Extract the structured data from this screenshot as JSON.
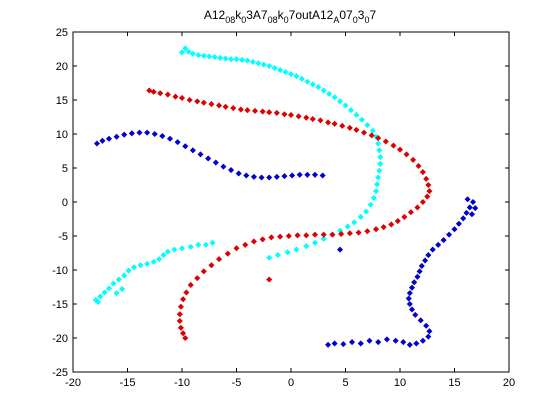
{
  "chart_data": {
    "type": "scatter",
    "title": {
      "parts": [
        {
          "t": "A12"
        },
        {
          "t": "08",
          "sub": true
        },
        {
          "t": "k"
        },
        {
          "t": "0",
          "sub": true
        },
        {
          "t": "3A7"
        },
        {
          "t": "08",
          "sub": true
        },
        {
          "t": "k"
        },
        {
          "t": "0",
          "sub": true
        },
        {
          "t": "7outA12"
        },
        {
          "t": "A",
          "sub": true
        },
        {
          "t": "07"
        },
        {
          "t": "0",
          "sub": true
        },
        {
          "t": "3"
        },
        {
          "t": "0",
          "sub": true
        },
        {
          "t": "7"
        }
      ]
    },
    "xlabel": "",
    "ylabel": "",
    "xlim": [
      -20,
      20
    ],
    "ylim": [
      -25,
      25
    ],
    "xticks": [
      "-20",
      "-15",
      "-10",
      "-5",
      "0",
      "5",
      "10",
      "15",
      "20"
    ],
    "yticks": [
      "-25",
      "-20",
      "-15",
      "-10",
      "-5",
      "0",
      "5",
      "10",
      "15",
      "20",
      "25"
    ],
    "grid": false,
    "marker": "diamond",
    "series": [
      {
        "color": "#00ffff",
        "points": [
          [
            -10.0,
            22.0
          ],
          [
            -9.7,
            22.6
          ],
          [
            -9.4,
            22.1
          ],
          [
            -9.0,
            21.8
          ],
          [
            -8.5,
            21.6
          ],
          [
            -8.0,
            21.5
          ],
          [
            -7.5,
            21.4
          ],
          [
            -7.0,
            21.3
          ],
          [
            -6.5,
            21.2
          ],
          [
            -6.0,
            21.1
          ],
          [
            -5.5,
            21.0
          ],
          [
            -5.0,
            21.0
          ],
          [
            -4.5,
            20.9
          ],
          [
            -4.0,
            20.8
          ],
          [
            -3.5,
            20.6
          ],
          [
            -3.0,
            20.4
          ],
          [
            -2.5,
            20.2
          ],
          [
            -2.0,
            20.0
          ],
          [
            -1.5,
            19.7
          ],
          [
            -1.0,
            19.4
          ],
          [
            -0.5,
            19.1
          ],
          [
            0.0,
            18.8
          ],
          [
            0.5,
            18.5
          ],
          [
            1.0,
            18.1
          ],
          [
            1.5,
            17.7
          ],
          [
            2.0,
            17.3
          ],
          [
            2.5,
            16.9
          ],
          [
            3.0,
            16.4
          ],
          [
            3.5,
            15.9
          ],
          [
            4.0,
            15.4
          ],
          [
            4.5,
            14.8
          ],
          [
            5.0,
            14.2
          ],
          [
            5.5,
            13.5
          ],
          [
            6.0,
            12.8
          ],
          [
            6.5,
            12.1
          ],
          [
            7.0,
            11.3
          ],
          [
            7.5,
            10.5
          ],
          [
            7.8,
            9.6
          ],
          [
            8.0,
            8.6
          ],
          [
            8.1,
            7.6
          ],
          [
            8.2,
            6.6
          ],
          [
            8.2,
            5.6
          ],
          [
            8.1,
            4.6
          ],
          [
            8.0,
            3.6
          ],
          [
            7.9,
            2.6
          ],
          [
            7.8,
            1.6
          ],
          [
            7.6,
            0.6
          ],
          [
            7.3,
            -0.4
          ],
          [
            6.9,
            -1.4
          ],
          [
            6.4,
            -2.2
          ],
          [
            5.8,
            -3.0
          ],
          [
            5.2,
            -3.6
          ],
          [
            4.5,
            -4.2
          ],
          [
            3.8,
            -4.8
          ],
          [
            3.0,
            -5.4
          ],
          [
            2.2,
            -6.0
          ],
          [
            1.4,
            -6.5
          ],
          [
            0.5,
            -7.0
          ],
          [
            -0.3,
            -7.4
          ],
          [
            -1.2,
            -7.8
          ],
          [
            -2.0,
            -8.2
          ],
          [
            -7.2,
            -6.0
          ],
          [
            -7.8,
            -6.3
          ],
          [
            -8.5,
            -6.3
          ],
          [
            -9.2,
            -6.6
          ],
          [
            -10.0,
            -6.8
          ],
          [
            -10.7,
            -7.0
          ],
          [
            -11.3,
            -7.3
          ],
          [
            -11.7,
            -7.8
          ],
          [
            -12.1,
            -8.4
          ],
          [
            -12.6,
            -8.8
          ],
          [
            -13.2,
            -9.1
          ],
          [
            -13.8,
            -9.3
          ],
          [
            -14.4,
            -9.6
          ],
          [
            -14.9,
            -10.1
          ],
          [
            -15.3,
            -10.8
          ],
          [
            -15.8,
            -11.4
          ],
          [
            -16.3,
            -12.0
          ],
          [
            -16.7,
            -12.7
          ],
          [
            -17.1,
            -13.3
          ],
          [
            -17.5,
            -13.9
          ],
          [
            -17.9,
            -14.4
          ],
          [
            -17.7,
            -14.7
          ],
          [
            -16.0,
            -13.4
          ],
          [
            -15.5,
            -12.8
          ]
        ]
      },
      {
        "color": "#dd0000",
        "points": [
          [
            -13.0,
            16.4
          ],
          [
            -12.6,
            16.2
          ],
          [
            -12.0,
            16.0
          ],
          [
            -11.3,
            15.8
          ],
          [
            -10.6,
            15.5
          ],
          [
            -10.0,
            15.3
          ],
          [
            -9.3,
            15.0
          ],
          [
            -8.6,
            14.8
          ],
          [
            -8.0,
            14.6
          ],
          [
            -7.3,
            14.4
          ],
          [
            -6.6,
            14.2
          ],
          [
            -6.0,
            14.0
          ],
          [
            -5.3,
            13.8
          ],
          [
            -4.6,
            13.6
          ],
          [
            -4.0,
            13.5
          ],
          [
            -3.3,
            13.4
          ],
          [
            -2.6,
            13.3
          ],
          [
            -2.0,
            13.2
          ],
          [
            -1.3,
            13.1
          ],
          [
            -0.6,
            12.9
          ],
          [
            0.0,
            12.8
          ],
          [
            0.7,
            12.6
          ],
          [
            1.4,
            12.4
          ],
          [
            2.0,
            12.2
          ],
          [
            2.7,
            12.0
          ],
          [
            3.4,
            11.7
          ],
          [
            4.0,
            11.5
          ],
          [
            4.7,
            11.2
          ],
          [
            5.4,
            10.9
          ],
          [
            6.0,
            10.6
          ],
          [
            6.7,
            10.2
          ],
          [
            7.4,
            9.8
          ],
          [
            8.0,
            9.4
          ],
          [
            8.7,
            8.9
          ],
          [
            9.4,
            8.3
          ],
          [
            10.0,
            7.7
          ],
          [
            10.6,
            7.0
          ],
          [
            11.2,
            6.2
          ],
          [
            11.7,
            5.3
          ],
          [
            12.1,
            4.4
          ],
          [
            12.4,
            3.4
          ],
          [
            12.6,
            2.5
          ],
          [
            12.7,
            1.6
          ],
          [
            12.5,
            0.8
          ],
          [
            12.1,
            0.0
          ],
          [
            11.6,
            -0.8
          ],
          [
            11.0,
            -1.5
          ],
          [
            10.4,
            -2.2
          ],
          [
            9.8,
            -2.8
          ],
          [
            9.2,
            -3.3
          ],
          [
            8.5,
            -3.7
          ],
          [
            7.8,
            -4.0
          ],
          [
            7.0,
            -4.3
          ],
          [
            6.2,
            -4.5
          ],
          [
            5.4,
            -4.6
          ],
          [
            4.6,
            -4.7
          ],
          [
            3.8,
            -4.8
          ],
          [
            3.0,
            -4.8
          ],
          [
            2.2,
            -4.8
          ],
          [
            1.4,
            -4.9
          ],
          [
            0.6,
            -4.9
          ],
          [
            -0.2,
            -5.0
          ],
          [
            -1.0,
            -5.1
          ],
          [
            -1.8,
            -5.2
          ],
          [
            -2.6,
            -5.5
          ],
          [
            -3.4,
            -5.8
          ],
          [
            -4.2,
            -6.3
          ],
          [
            -5.0,
            -6.8
          ],
          [
            -5.8,
            -7.6
          ],
          [
            -6.6,
            -8.4
          ],
          [
            -7.3,
            -9.3
          ],
          [
            -8.0,
            -10.2
          ],
          [
            -8.6,
            -11.2
          ],
          [
            -9.2,
            -12.2
          ],
          [
            -9.6,
            -13.3
          ],
          [
            -9.9,
            -14.3
          ],
          [
            -10.1,
            -15.4
          ],
          [
            -10.2,
            -16.5
          ],
          [
            -10.2,
            -17.5
          ],
          [
            -10.1,
            -18.5
          ],
          [
            -9.9,
            -19.3
          ],
          [
            -9.7,
            -20.0
          ],
          [
            -2.0,
            -11.4
          ]
        ]
      },
      {
        "color": "#0000cc",
        "points": [
          [
            -17.8,
            8.6
          ],
          [
            -17.3,
            9.0
          ],
          [
            -16.7,
            9.3
          ],
          [
            -16.0,
            9.6
          ],
          [
            -15.3,
            9.9
          ],
          [
            -14.6,
            10.1
          ],
          [
            -13.9,
            10.2
          ],
          [
            -13.2,
            10.2
          ],
          [
            -12.5,
            10.0
          ],
          [
            -11.8,
            9.7
          ],
          [
            -11.1,
            9.3
          ],
          [
            -10.4,
            8.8
          ],
          [
            -9.7,
            8.2
          ],
          [
            -9.0,
            7.6
          ],
          [
            -8.3,
            7.0
          ],
          [
            -7.6,
            6.4
          ],
          [
            -6.9,
            5.8
          ],
          [
            -6.2,
            5.2
          ],
          [
            -5.5,
            4.7
          ],
          [
            -4.8,
            4.2
          ],
          [
            -4.1,
            3.9
          ],
          [
            -3.4,
            3.7
          ],
          [
            -2.7,
            3.6
          ],
          [
            -2.0,
            3.6
          ],
          [
            -1.3,
            3.7
          ],
          [
            -0.6,
            3.8
          ],
          [
            0.1,
            3.9
          ],
          [
            0.8,
            4.0
          ],
          [
            1.5,
            4.0
          ],
          [
            2.2,
            4.0
          ],
          [
            2.9,
            3.9
          ],
          [
            4.5,
            -7.0
          ],
          [
            3.4,
            -21.0
          ],
          [
            4.0,
            -20.8
          ],
          [
            4.8,
            -20.9
          ],
          [
            5.6,
            -20.6
          ],
          [
            6.4,
            -20.8
          ],
          [
            7.2,
            -20.4
          ],
          [
            8.0,
            -20.6
          ],
          [
            8.8,
            -20.2
          ],
          [
            9.6,
            -20.4
          ],
          [
            10.3,
            -20.6
          ],
          [
            10.9,
            -21.0
          ],
          [
            11.5,
            -20.8
          ],
          [
            12.1,
            -20.4
          ],
          [
            12.6,
            -19.8
          ],
          [
            12.7,
            -19.0
          ],
          [
            12.4,
            -18.2
          ],
          [
            11.9,
            -17.4
          ],
          [
            11.4,
            -16.6
          ],
          [
            11.1,
            -15.8
          ],
          [
            10.9,
            -15.0
          ],
          [
            10.8,
            -14.2
          ],
          [
            10.9,
            -13.4
          ],
          [
            11.1,
            -12.6
          ],
          [
            11.3,
            -11.8
          ],
          [
            11.6,
            -11.0
          ],
          [
            11.8,
            -10.2
          ],
          [
            12.0,
            -9.4
          ],
          [
            12.3,
            -8.6
          ],
          [
            12.6,
            -7.8
          ],
          [
            13.0,
            -7.0
          ],
          [
            13.5,
            -6.3
          ],
          [
            14.0,
            -5.6
          ],
          [
            14.5,
            -4.8
          ],
          [
            15.0,
            -4.0
          ],
          [
            15.4,
            -3.2
          ],
          [
            15.8,
            -2.4
          ],
          [
            16.1,
            -1.6
          ],
          [
            16.4,
            -0.8
          ],
          [
            16.7,
            0.0
          ],
          [
            16.9,
            -0.9
          ],
          [
            16.6,
            -1.8
          ],
          [
            16.2,
            0.4
          ]
        ]
      }
    ]
  }
}
